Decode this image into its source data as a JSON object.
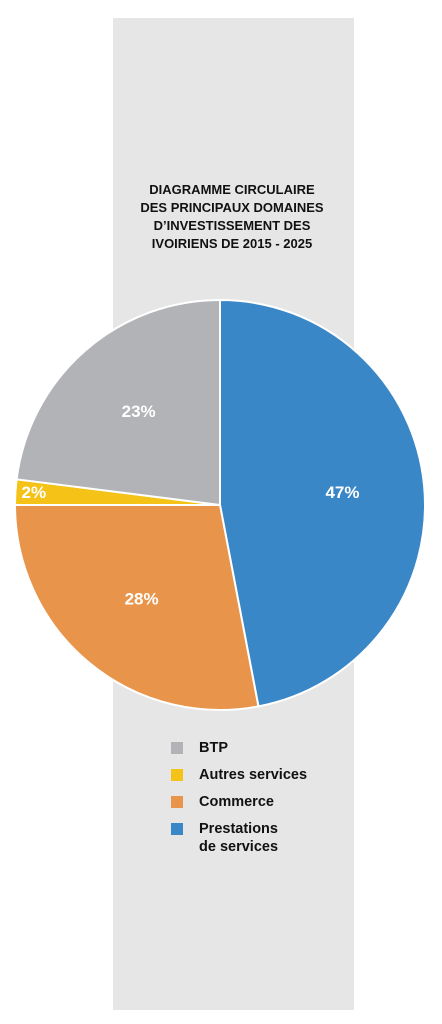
{
  "chart_data": {
    "type": "pie",
    "title": "DIAGRAMME CIRCULAIRE\nDES PRINCIPAUX DOMAINES\nD’INVESTISSEMENT DES\nIVOIRIENS DE 2015 - 2025",
    "categories": [
      "BTP",
      "Autres services",
      "Commerce",
      "Prestations\nde services"
    ],
    "values": [
      23,
      2,
      28,
      47
    ],
    "value_labels": [
      "23%",
      "2%",
      "28%",
      "47%"
    ],
    "colors": [
      "#b2b3b7",
      "#f5c218",
      "#e8944a",
      "#3a87c8"
    ]
  }
}
